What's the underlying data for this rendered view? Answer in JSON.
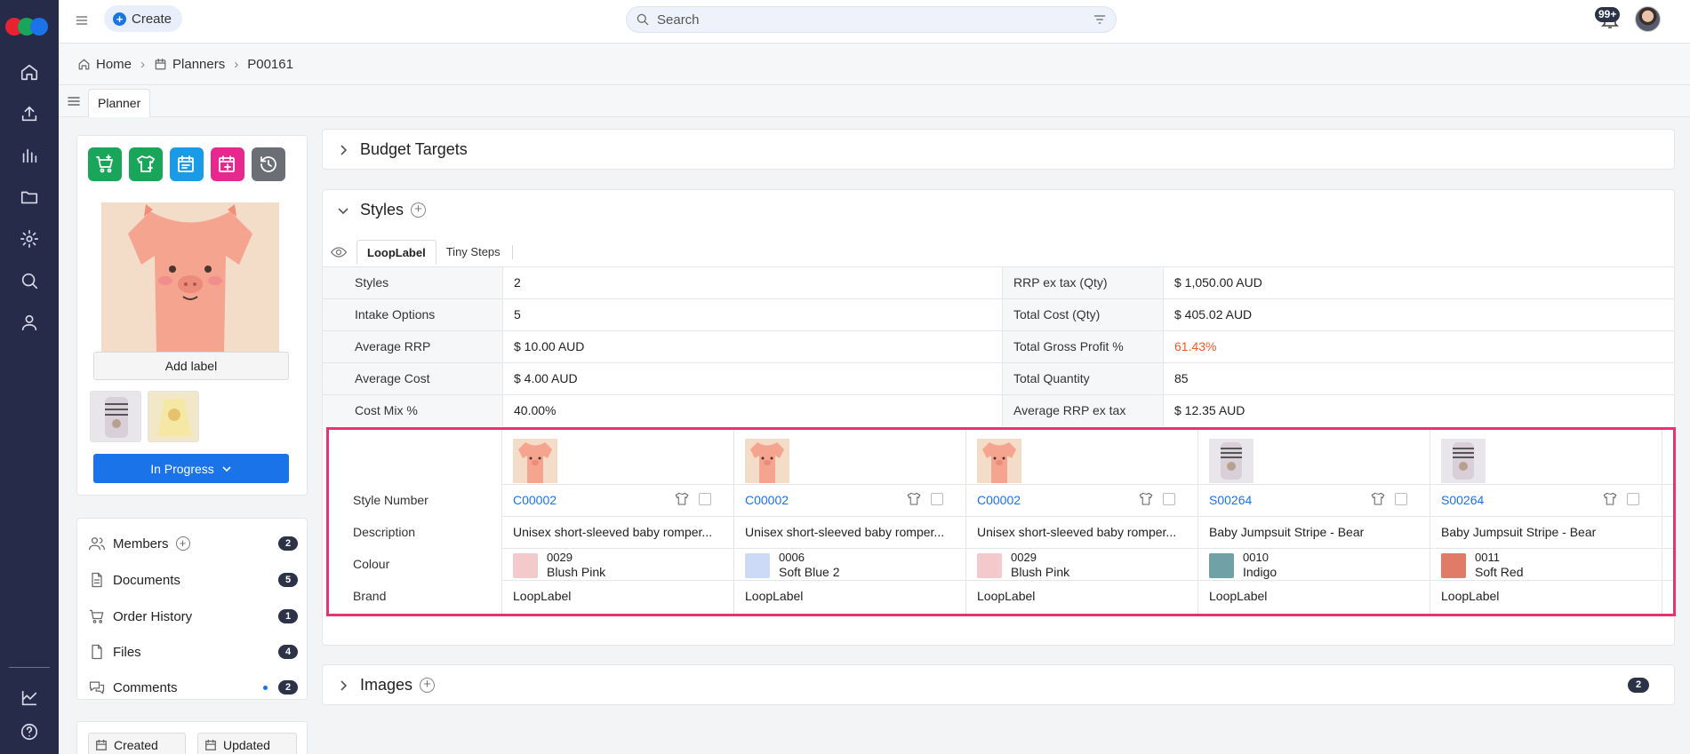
{
  "topbar": {
    "create_label": "Create",
    "search_placeholder": "Search",
    "notifications_count": "99+"
  },
  "breadcrumb": {
    "items": [
      "Home",
      "Planners",
      "P00161"
    ]
  },
  "subbar": {
    "tab_label": "Planner"
  },
  "left_panel": {
    "action_buttons": [
      {
        "icon": "cart-add-icon",
        "color": "#19a55a"
      },
      {
        "icon": "tshirt-add-icon",
        "color": "#19a55a"
      },
      {
        "icon": "calendar-list-icon",
        "color": "#1a9be8"
      },
      {
        "icon": "calendar-add-icon",
        "color": "#e8288f"
      },
      {
        "icon": "history-icon",
        "color": "#6b6e75"
      }
    ],
    "add_label": "Add label",
    "status_label": "In Progress",
    "list": [
      {
        "label": "Members",
        "count": "2",
        "icon": "people-icon"
      },
      {
        "label": "Documents",
        "count": "5",
        "icon": "document-icon"
      },
      {
        "label": "Order History",
        "count": "1",
        "icon": "cart-icon"
      },
      {
        "label": "Files",
        "count": "4",
        "icon": "file-icon"
      },
      {
        "label": "Comments",
        "count": "2",
        "icon": "comments-icon"
      }
    ],
    "created_label": "Created",
    "updated_label": "Updated"
  },
  "budget": {
    "title": "Budget Targets"
  },
  "styles_section": {
    "title": "Styles",
    "brand_tabs": [
      "LoopLabel",
      "Tiny Steps"
    ],
    "stats": [
      {
        "label": "Styles",
        "value": "2",
        "label2": "RRP ex tax (Qty)",
        "value2": "$ 1,050.00 AUD"
      },
      {
        "label": "Intake Options",
        "value": "5",
        "label2": "Total Cost (Qty)",
        "value2": "$ 405.02 AUD"
      },
      {
        "label": "Average RRP",
        "value": "$ 10.00 AUD",
        "label2": "Total Gross Profit %",
        "value2": "61.43%"
      },
      {
        "label": "Average Cost",
        "value": "$ 4.00 AUD",
        "label2": "Total Quantity",
        "value2": "85"
      },
      {
        "label": "Cost Mix %",
        "value": "40.00%",
        "label2": "Average RRP ex tax",
        "value2": "$ 12.35 AUD"
      }
    ],
    "profit_color": "#f05a28",
    "grid_labels": {
      "style_number": "Style Number",
      "description": "Description",
      "colour": "Colour",
      "brand": "Brand"
    },
    "columns": [
      {
        "style_number": "C00002",
        "description": "Unisex short-sleeved baby romper...",
        "colour_code": "0029",
        "colour_name": "Blush Pink",
        "swatch": "#f4c9cb",
        "brand": "LoopLabel",
        "image": "pig-romper"
      },
      {
        "style_number": "C00002",
        "description": "Unisex short-sleeved baby romper...",
        "colour_code": "0006",
        "colour_name": "Soft Blue 2",
        "swatch": "#ccdaf7",
        "brand": "LoopLabel",
        "image": "pig-romper"
      },
      {
        "style_number": "C00002",
        "description": "Unisex short-sleeved baby romper...",
        "colour_code": "0029",
        "colour_name": "Blush Pink",
        "swatch": "#f4c9cb",
        "brand": "LoopLabel",
        "image": "pig-romper"
      },
      {
        "style_number": "S00264",
        "description": "Baby Jumpsuit Stripe - Bear",
        "colour_code": "0010",
        "colour_name": "Indigo",
        "swatch": "#6fa1a6",
        "brand": "LoopLabel",
        "image": "bear-jumpsuit"
      },
      {
        "style_number": "S00264",
        "description": "Baby Jumpsuit Stripe - Bear",
        "colour_code": "0011",
        "colour_name": "Soft Red",
        "swatch": "#e07b67",
        "brand": "LoopLabel",
        "image": "bear-jumpsuit"
      }
    ]
  },
  "images_section": {
    "title": "Images",
    "count": "2"
  }
}
